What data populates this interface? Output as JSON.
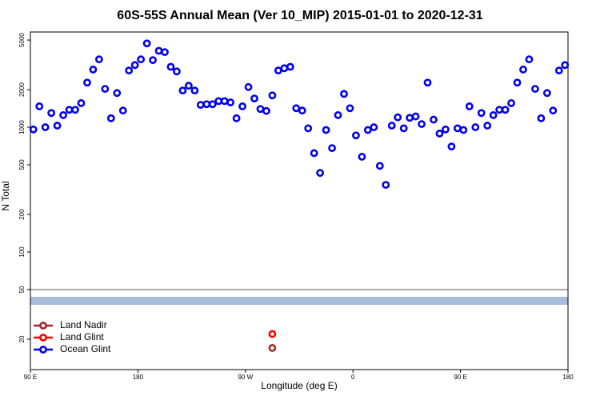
{
  "chart_data": {
    "type": "scatter",
    "title": "60S-55S Annual Mean (Ver 10_MIP)   2015-01-01 to 2020-12-31",
    "xlabel": "Longitude (deg E)",
    "ylabel": "N Total",
    "log_y": true,
    "legend": "bottom-left",
    "xlim": [
      90,
      540
    ],
    "xticks": [
      {
        "value": 90,
        "label": "90 E"
      },
      180,
      {
        "value": 270,
        "label": "90 W"
      },
      {
        "value": 360,
        "label": "0"
      },
      {
        "value": 450,
        "label": "90 E"
      },
      {
        "value": 540,
        "label": "180"
      }
    ],
    "ylim": [
      11.4,
      5800
    ],
    "yticks": [
      20,
      50,
      100,
      200,
      500,
      1000,
      2000,
      5000
    ],
    "series": [
      {
        "name": "Land Nadir",
        "color": "#a0282a",
        "x": [
          292.5
        ],
        "values": [
          17
        ]
      },
      {
        "name": "Land Glint",
        "color": "#ff0000",
        "x": [
          292.5
        ],
        "values": [
          22
        ]
      },
      {
        "name": "Ocean Glint",
        "color": "#0000ee",
        "x": [
          92.5,
          97.5,
          102.5,
          107.5,
          112.5,
          117.5,
          122.5,
          127.5,
          132.5,
          137.5,
          142.5,
          147.5,
          152.5,
          157.5,
          162.5,
          167.5,
          172.5,
          177.5,
          182.5,
          187.5,
          192.5,
          197.5,
          202.5,
          207.5,
          212.5,
          217.5,
          222.5,
          227.5,
          232.5,
          237.5,
          242.5,
          247.5,
          252.5,
          257.5,
          262.5,
          267.5,
          272.5,
          277.5,
          282.5,
          287.5,
          292.5,
          297.5,
          302.5,
          307.5,
          312.5,
          317.5,
          322.5,
          327.5,
          332.5,
          337.5,
          342.5,
          347.5,
          352.5,
          357.5,
          362.5,
          367.5,
          372.5,
          377.5,
          382.5,
          387.5,
          392.5,
          397.5,
          402.5,
          407.5,
          412.5,
          417.5,
          422.5,
          427.5,
          432.5,
          437.5,
          442.5,
          447.5,
          452.5,
          457.5,
          462.5,
          467.5,
          472.5,
          477.5,
          482.5,
          487.5,
          492.5,
          497.5,
          502.5,
          507.5,
          512.5,
          517.5,
          522.5,
          527.5,
          532.5,
          537.5
        ],
        "values": [
          960,
          1470,
          1000,
          1300,
          1030,
          1250,
          1380,
          1380,
          1560,
          2280,
          2900,
          3500,
          2030,
          1180,
          1880,
          1360,
          2850,
          3150,
          3500,
          4700,
          3450,
          4100,
          4000,
          3050,
          2800,
          1970,
          2150,
          1970,
          1510,
          1530,
          1530,
          1620,
          1620,
          1580,
          1180,
          1470,
          2100,
          1700,
          1400,
          1350,
          1800,
          2850,
          2970,
          3050,
          1420,
          1360,
          980,
          620,
          430,
          950,
          680,
          1250,
          1850,
          1420,
          860,
          580,
          950,
          1000,
          490,
          345,
          1030,
          1200,
          980,
          1190,
          1220,
          1060,
          2280,
          1150,
          890,
          960,
          700,
          980,
          950,
          1470,
          1000,
          1300,
          1030,
          1250,
          1380,
          1380,
          1560,
          2280,
          2900,
          3500,
          2030,
          1180,
          1880,
          1360,
          2850,
          3150
        ]
      }
    ]
  }
}
